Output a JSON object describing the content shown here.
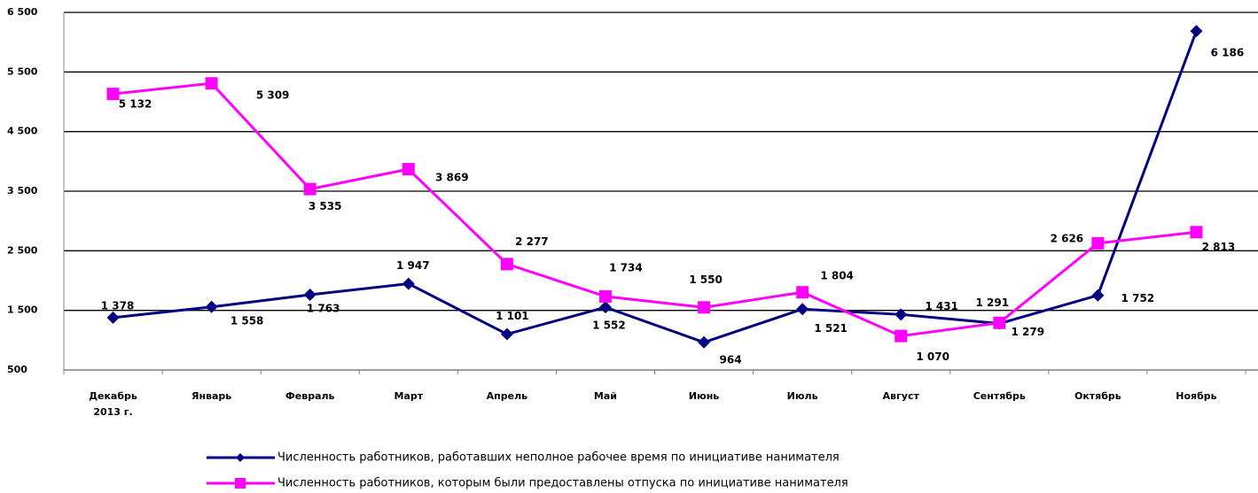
{
  "chart_data": {
    "type": "line",
    "categories": [
      "Декабрь 2013 г.",
      "Январь",
      "Февраль",
      "Март",
      "Апрель",
      "Май",
      "Июнь",
      "Июль",
      "Август",
      "Сентябрь",
      "Октябрь",
      "Ноябрь"
    ],
    "series": [
      {
        "name": "Численность работников, работавших неполное рабочее время по инициативе нанимателя",
        "color": "#000080",
        "marker": "diamond",
        "values": [
          1378,
          1558,
          1763,
          1947,
          1101,
          1552,
          964,
          1521,
          1431,
          1279,
          1752,
          6186
        ],
        "value_labels": [
          "1 378",
          "1 558",
          "1 763",
          "1 947",
          "1 101",
          "1 552",
          "964",
          "1 521",
          "1 431",
          "1 279",
          "1 752",
          "6 186"
        ]
      },
      {
        "name": "Численность работников, которым были предоставлены отпуска по инициативе нанимателя",
        "color": "#FF00FF",
        "marker": "square",
        "values": [
          5132,
          5309,
          3535,
          3869,
          2277,
          1734,
          1550,
          1804,
          1070,
          1291,
          2626,
          2813
        ],
        "value_labels": [
          "5 132",
          "5 309",
          "3 535",
          "3 869",
          "2 277",
          "1 734",
          "1 550",
          "1 804",
          "1 070",
          "1 291",
          "2 626",
          "2 813"
        ]
      }
    ],
    "ylim": [
      500,
      6500
    ],
    "yticks": [
      500,
      {
        "value": 1500,
        "label": "1 500"
      },
      {
        "value": 2500,
        "label": "2 500"
      },
      {
        "value": 3500,
        "label": "3 500"
      },
      {
        "value": 4500,
        "label": "4 500"
      },
      {
        "value": 5500,
        "label": "5 500"
      },
      {
        "value": 6500,
        "label": "6 500"
      }
    ],
    "grid": true,
    "legend": "bottom"
  }
}
